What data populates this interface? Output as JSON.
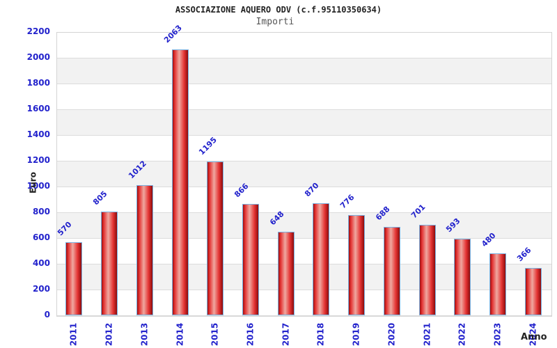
{
  "header": {
    "title": "ASSOCIAZIONE AQUERO ODV (c.f.95110350634)",
    "subtitle": "Importi"
  },
  "chart_data": {
    "type": "bar",
    "title": "ASSOCIAZIONE AQUERO ODV (c.f.95110350634)",
    "subtitle": "Importi",
    "xlabel": "Anno",
    "ylabel": "Euro",
    "categories": [
      "2011",
      "2012",
      "2013",
      "2014",
      "2015",
      "2016",
      "2017",
      "2018",
      "2019",
      "2020",
      "2021",
      "2022",
      "2023",
      "2024"
    ],
    "values": [
      570,
      805,
      1012,
      2063,
      1195,
      866,
      648,
      870,
      776,
      688,
      701,
      593,
      480,
      366
    ],
    "yticks": [
      0,
      200,
      400,
      600,
      800,
      1000,
      1200,
      1400,
      1600,
      1800,
      2000,
      2200
    ],
    "ylim": [
      0,
      2200
    ],
    "grid": true,
    "legend_position": "none",
    "background_bands": "alternating horizontal bands every 200 units"
  },
  "colors": {
    "label_blue": "#2222cc",
    "title_color": "#222222",
    "subtitle_color": "#555555",
    "bar_border": "#79b2e2",
    "bar_edge_dark": "#9e0f0f",
    "bar_red": "#e43333",
    "bar_highlight": "#efa8a0",
    "bar_edge_end": "#8c0c0c",
    "band_gray": "#f2f2f2",
    "grid_line": "#dcdcdc",
    "plot_border": "#d4d4d4"
  }
}
